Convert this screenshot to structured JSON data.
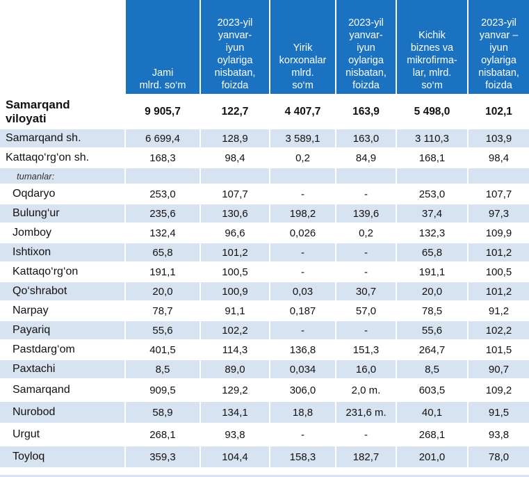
{
  "headers": [
    "",
    "Jami\nmlrd. so‘m",
    "2023-yil\nyanvar-\niyun\noylariga\nnisbatan,\nfoizda",
    "Yirik\nkorxonalar\nmlrd.\nso‘m",
    "2023-yil\nyanvar-\niyun\noylariga\nnisbatan,\nfoizda",
    "Kichik\nbiznes va\nmikrofirma-\nlar, mlrd.\nso‘m",
    "2023-yil\nyanvar –\niyun\noylariga\nnisbatan,\nfoizda"
  ],
  "total": {
    "name": "Samarqand\nviloyati",
    "values": [
      "9 905,7",
      "122,7",
      "4 407,7",
      "163,9",
      "5 498,0",
      "102,1"
    ]
  },
  "cities": [
    {
      "name": "Samarqand sh.",
      "values": [
        "6 699,4",
        "128,9",
        "3 589,1",
        "163,0",
        "3 110,3",
        "103,9"
      ]
    },
    {
      "name": "Kattaqo‘rg‘on sh.",
      "values": [
        "168,3",
        "98,4",
        "0,2",
        "84,9",
        "168,1",
        "98,4"
      ]
    }
  ],
  "districts_label": "tumanlar:",
  "districts": [
    {
      "name": "Oqdaryo",
      "values": [
        "253,0",
        "107,7",
        "-",
        "-",
        "253,0",
        "107,7"
      ]
    },
    {
      "name": "Bulung‘ur",
      "values": [
        "235,6",
        "130,6",
        "198,2",
        "139,6",
        "37,4",
        "97,3"
      ]
    },
    {
      "name": "Jomboy",
      "values": [
        "132,4",
        "96,6",
        "0,026",
        "0,2",
        "132,3",
        "109,9"
      ]
    },
    {
      "name": "Ishtixon",
      "values": [
        "65,8",
        "101,2",
        "-",
        "-",
        "65,8",
        "101,2"
      ]
    },
    {
      "name": "Kattaqo‘rg‘on",
      "values": [
        "191,1",
        "100,5",
        "-",
        "-",
        "191,1",
        "100,5"
      ]
    },
    {
      "name": "Qo‘shrabot",
      "values": [
        "20,0",
        "100,9",
        "0,03",
        "30,7",
        "20,0",
        "101,2"
      ]
    },
    {
      "name": "Narpay",
      "values": [
        "78,7",
        "91,1",
        "0,187",
        "57,0",
        "78,5",
        "91,2"
      ]
    },
    {
      "name": "Payariq",
      "values": [
        "55,6",
        "102,2",
        "-",
        "-",
        "55,6",
        "102,2"
      ]
    },
    {
      "name": "Pastdarg‘om",
      "values": [
        "401,5",
        "114,3",
        "136,8",
        "151,3",
        "264,7",
        "101,5"
      ]
    },
    {
      "name": "Paxtachi",
      "values": [
        "8,5",
        "89,0",
        "0,034",
        "16,0",
        "8,5",
        "90,7"
      ]
    },
    {
      "name": "Samarqand",
      "values": [
        "909,5",
        "129,2",
        "306,0",
        "2,0 m.",
        "603,5",
        "109,2"
      ]
    },
    {
      "name": "Nurobod",
      "values": [
        "58,9",
        "134,1",
        "18,8",
        "231,6 m.",
        "40,1",
        "91,5"
      ]
    },
    {
      "name": "Urgut",
      "values": [
        "268,1",
        "93,8",
        "-",
        "-",
        "268,1",
        "93,8"
      ]
    },
    {
      "name": "Toyloq",
      "values": [
        "359,3",
        "104,4",
        "158,3",
        "182,7",
        "201,0",
        "78,0"
      ]
    }
  ]
}
